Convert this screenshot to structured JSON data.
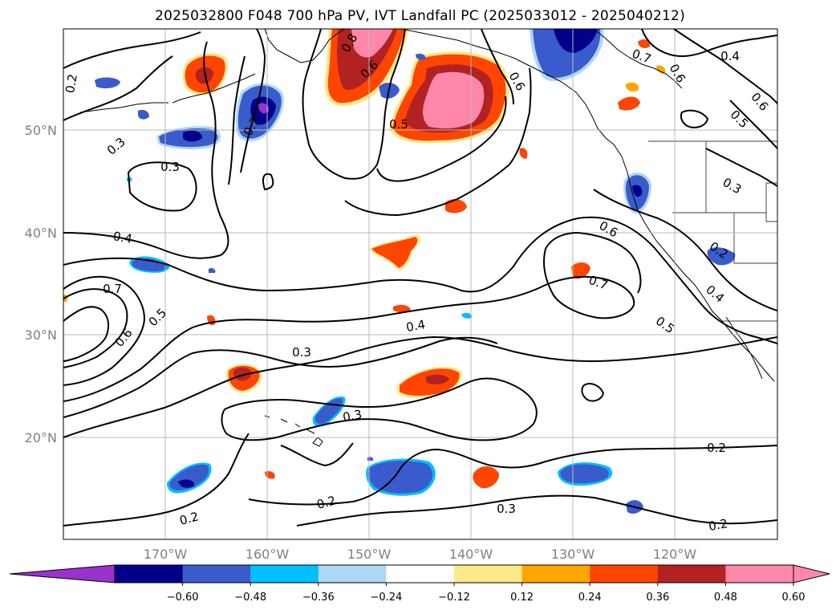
{
  "title": "2025032800 F048 700 hPa PV, IVT Landfall PC (2025033012 - 2025040212)",
  "lat_labels": [
    "50°N",
    "40°N",
    "30°N",
    "20°N"
  ],
  "lon_labels": [
    "170°W",
    "160°W",
    "150°W",
    "140°W",
    "130°W",
    "120°W"
  ],
  "contour_labels": [
    "0.2",
    "0.3",
    "0.3",
    "0.4",
    "0.7",
    "0.6",
    "0.5",
    "0.3",
    "0.4",
    "0.5",
    "0.6",
    "0.7",
    "0.8",
    "0.6",
    "0.7",
    "0.6",
    "0.4",
    "0.6",
    "0.5",
    "0.3",
    "0.2",
    "0.4",
    "0.5",
    "0.6",
    "0.7",
    "0.2",
    "0.2",
    "0.3",
    "0.2",
    "0.2"
  ],
  "colorbar": {
    "colors": [
      "#9932cc",
      "#00008b",
      "#3a5bcc",
      "#00bfff",
      "#add8f5",
      "#ffffff",
      "#ffe98a",
      "#ffa500",
      "#ff4500",
      "#b22222",
      "#ff88aa",
      "#ff88aa"
    ],
    "lower_extend_color": "#9932cc",
    "upper_extend_color": "#ff88aa",
    "tick_labels": [
      "−0.60",
      "−0.48",
      "−0.36",
      "−0.24",
      "−0.12",
      "0.12",
      "0.24",
      "0.36",
      "0.48",
      "0.60"
    ]
  }
}
